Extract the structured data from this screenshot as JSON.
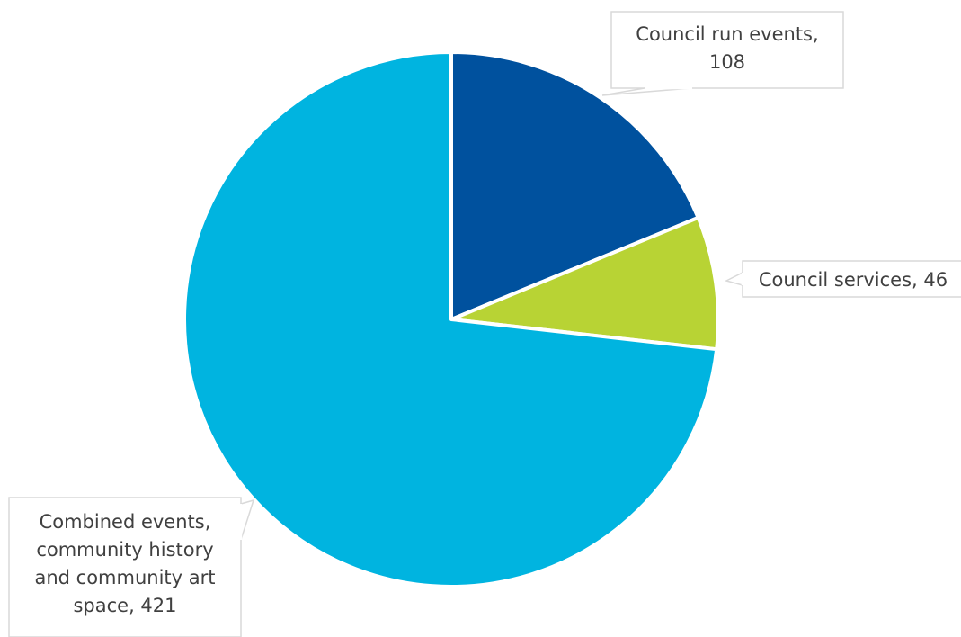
{
  "chart_data": {
    "type": "pie",
    "slices": [
      {
        "label": "Council run events",
        "value": 108,
        "color": "#00519E",
        "label_lines": [
          "Council run events,",
          "108"
        ]
      },
      {
        "label": "Council services",
        "value": 46,
        "color": "#B8D334",
        "label_lines": [
          "Council services, 46"
        ]
      },
      {
        "label": "Combined events, community history and community art space",
        "value": 421,
        "color": "#00B4E0",
        "label_lines": [
          "Combined events,",
          "community history",
          "and community art",
          "space, 421"
        ]
      }
    ],
    "start_angle_deg": 0,
    "direction": "clockwise",
    "legend": "none",
    "data_labels": "callouts"
  }
}
